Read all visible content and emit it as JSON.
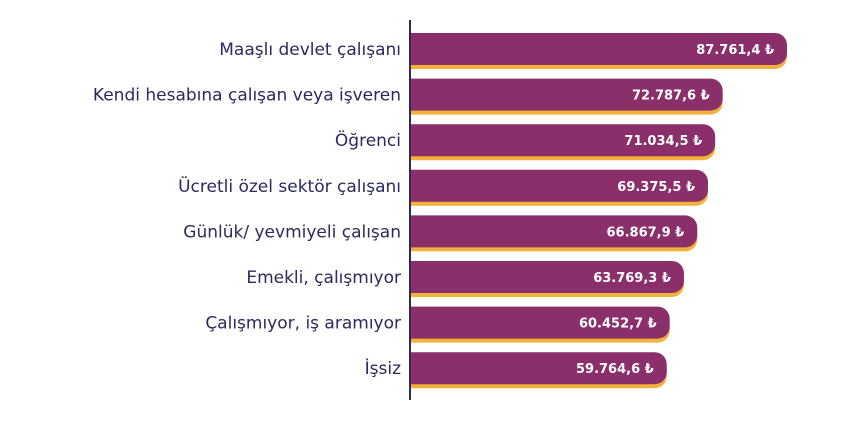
{
  "chart_data": {
    "type": "bar",
    "orientation": "horizontal",
    "categories": [
      "Maaşlı devlet çalışanı",
      "Kendi hesabına çalışan veya işveren",
      "Öğrenci",
      "Ücretli özel sektör çalışanı",
      "Günlük/ yevmiyeli çalışan",
      "Emekli, çalışmıyor",
      "Çalışmıyor, iş aramıyor",
      "İşsiz"
    ],
    "values": [
      87761.4,
      72787.6,
      71034.5,
      69375.5,
      66867.9,
      63769.3,
      60452.7,
      59764.6
    ],
    "value_labels": [
      "87.761,4 ₺",
      "72.787,6 ₺",
      "71.034,5 ₺",
      "69.375,5 ₺",
      "66.867,9 ₺",
      "63.769,3 ₺",
      "60.452,7 ₺",
      "59.764,6 ₺"
    ],
    "xlim": [
      0,
      87761.4
    ],
    "grid": false,
    "colors": {
      "bar": "#8b2f6b",
      "bar_shadow": "#f2b13a",
      "axis": "#2b2a5e",
      "label": "#2b2a5e"
    }
  }
}
